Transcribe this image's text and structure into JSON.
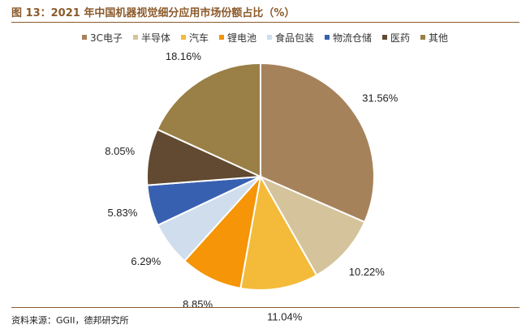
{
  "figure": {
    "title": "图 13：2021 年中国机器视觉细分应用市场份额占比（%）",
    "source": "资料来源：GGII，德邦研究所"
  },
  "chart_data": {
    "type": "pie",
    "title": "图 13：2021 年中国机器视觉细分应用市场份额占比（%）",
    "legend_position": "top",
    "start_angle": "12 o'clock, clockwise",
    "unit": "%",
    "categories": [
      "3C电子",
      "半导体",
      "汽车",
      "锂电池",
      "食品包装",
      "物流仓储",
      "医药",
      "其他"
    ],
    "values": [
      31.56,
      10.22,
      11.04,
      8.85,
      6.29,
      5.83,
      8.05,
      18.16
    ],
    "labels": [
      "31.56%",
      "10.22%",
      "11.04%",
      "8.85%",
      "6.29%",
      "5.83%",
      "8.05%",
      "18.16%"
    ],
    "colors": [
      "#A6825B",
      "#D5C39C",
      "#F4BA3A",
      "#F59507",
      "#CFDDEC",
      "#3860B1",
      "#614A31",
      "#9A7F46"
    ]
  }
}
